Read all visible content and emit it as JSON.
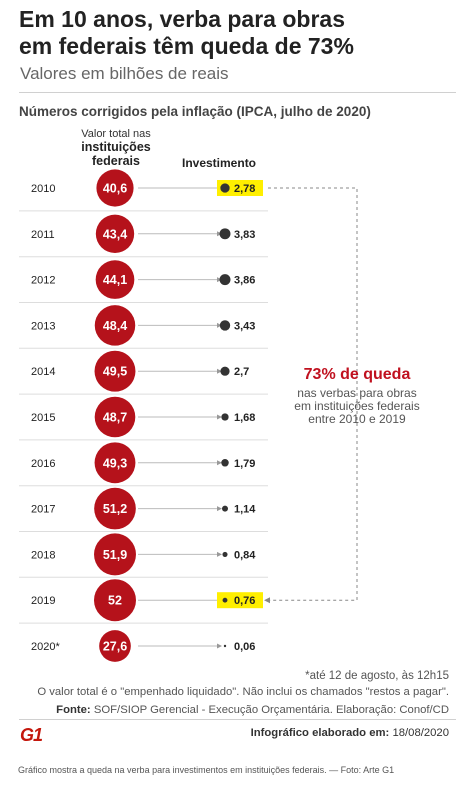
{
  "title": {
    "line1": "Em 10 anos, verba para obras",
    "line2": "em federais têm queda de 73%"
  },
  "subtitle": "Valores em bilhões de reais",
  "section_heading": "Números corrigidos pela inflação (IPCA, julho de 2020)",
  "columns": {
    "total_label_1": "Valor total nas",
    "total_label_2": "instituições federais",
    "investment_label": "Investimento"
  },
  "annotation": {
    "headline": "73% de queda",
    "line1": "nas verbas para obras",
    "line2": "em instituições federais",
    "line3": "entre 2010 e 2019"
  },
  "footnote": "*até 12 de agosto, às 12h15",
  "note": "O valor total é o \"empenhado liquidado\". Não inclui os chamados \"restos a pagar\".",
  "source": {
    "label": "Fonte:",
    "text": "SOF/SIOP Gerencial - Execução Orçamentária. Elaboração: Conof/CD"
  },
  "logo_text": "G1",
  "credit": {
    "label": "Infográfico elaborado em:",
    "date": "18/08/2020"
  },
  "caption": "Gráfico mostra a queda na verba para investimentos em instituições federais. — Foto: Arte G1",
  "colors": {
    "red": "#b5121b",
    "dark": "#333333",
    "highlight": "#ffef00",
    "annotation_red": "#c0111f"
  },
  "chart_data": {
    "type": "table",
    "categories": [
      "2010",
      "2011",
      "2012",
      "2013",
      "2014",
      "2015",
      "2016",
      "2017",
      "2018",
      "2019",
      "2020*"
    ],
    "series": [
      {
        "name": "Valor total nas instituições federais",
        "values": [
          40.6,
          43.4,
          44.1,
          48.4,
          49.5,
          48.7,
          49.3,
          51.2,
          51.9,
          52,
          27.6
        ],
        "labels": [
          "40,6",
          "43,4",
          "44,1",
          "48,4",
          "49,5",
          "48,7",
          "49,3",
          "51,2",
          "51,9",
          "52",
          "27,6"
        ]
      },
      {
        "name": "Investimento",
        "values": [
          2.78,
          3.83,
          3.86,
          3.43,
          2.7,
          1.68,
          1.79,
          1.14,
          0.84,
          0.76,
          0.06
        ],
        "labels": [
          "2,78",
          "3,83",
          "3,86",
          "3,43",
          "2,7",
          "1,68",
          "1,79",
          "1,14",
          "0,84",
          "0,76",
          "0,06"
        ]
      }
    ],
    "highlighted": [
      "2010",
      "2019"
    ]
  }
}
